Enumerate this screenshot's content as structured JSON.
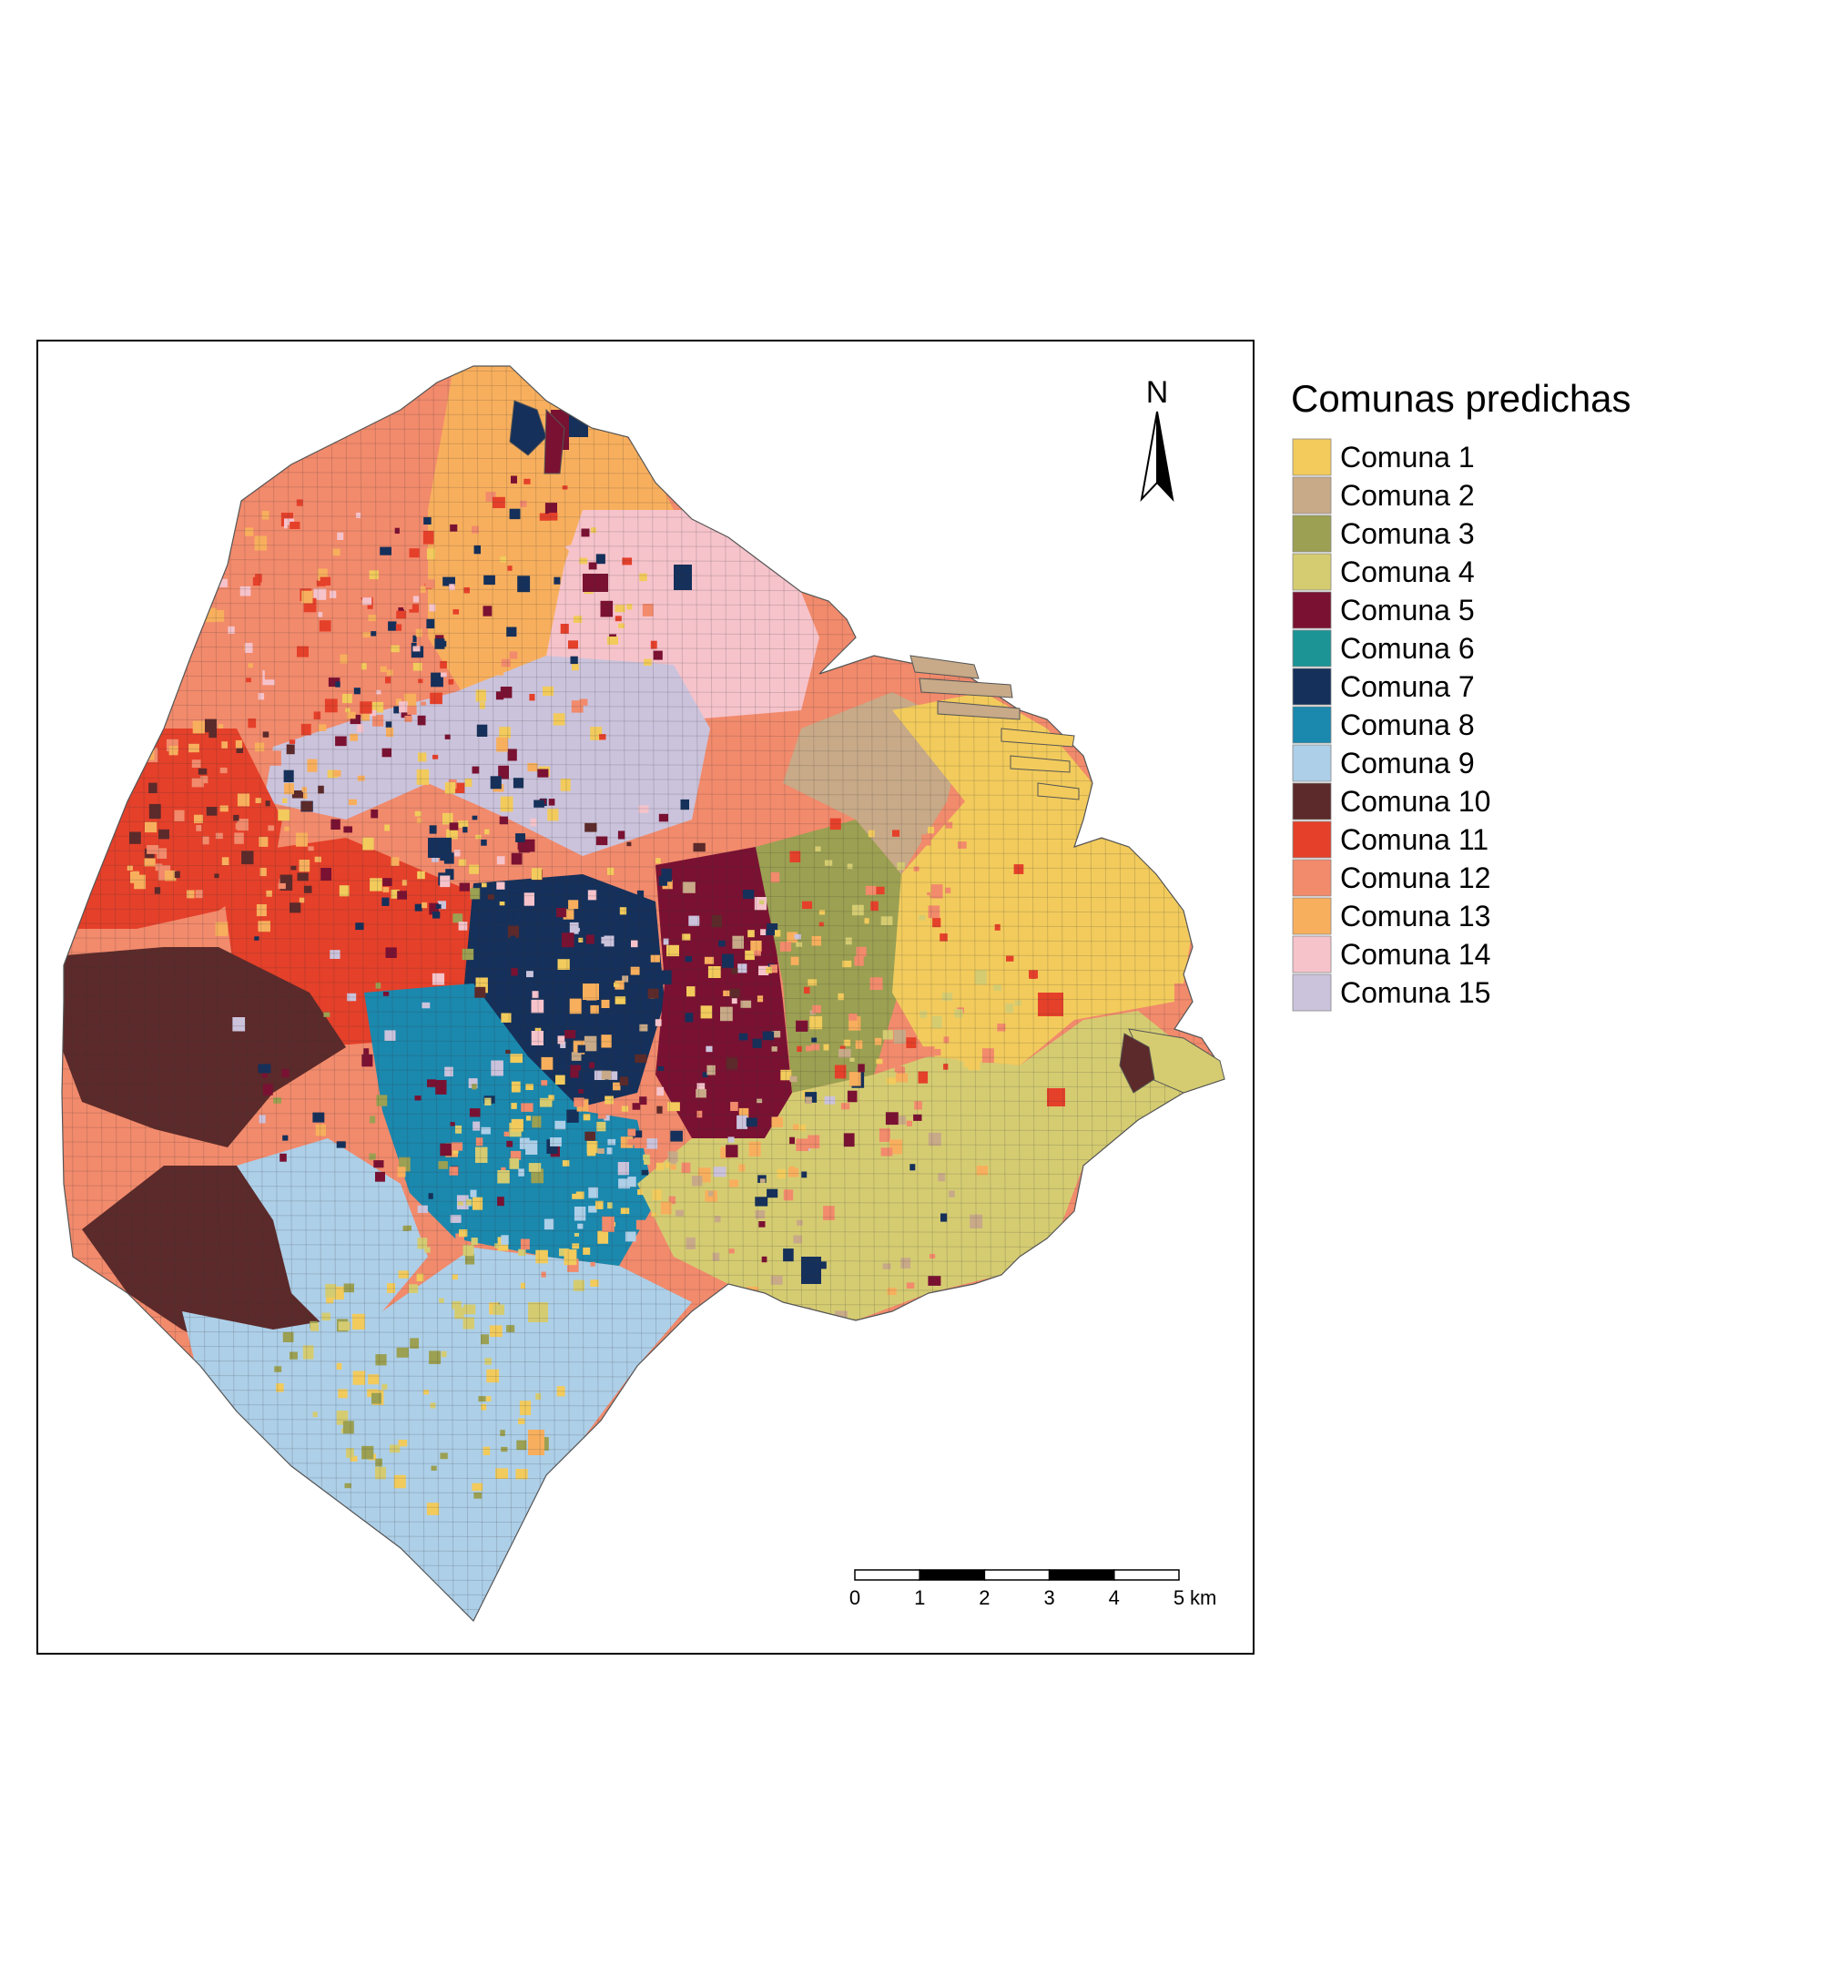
{
  "north_arrow": {
    "label": "N",
    "icon": "north-arrow-icon"
  },
  "legend": {
    "title": "Comunas predichas",
    "items": [
      {
        "label": "Comuna 1",
        "color": "#F2CB5C"
      },
      {
        "label": "Comuna 2",
        "color": "#C8AA88"
      },
      {
        "label": "Comuna 3",
        "color": "#9BA052"
      },
      {
        "label": "Comuna 4",
        "color": "#D5CC72"
      },
      {
        "label": "Comuna 5",
        "color": "#7A1132"
      },
      {
        "label": "Comuna 6",
        "color": "#1C9495"
      },
      {
        "label": "Comuna 7",
        "color": "#15305A"
      },
      {
        "label": "Comuna 8",
        "color": "#1B88AE"
      },
      {
        "label": "Comuna 9",
        "color": "#ADCFE8"
      },
      {
        "label": "Comuna 10",
        "color": "#5C2A2A"
      },
      {
        "label": "Comuna 11",
        "color": "#E5402A"
      },
      {
        "label": "Comuna 12",
        "color": "#F28A6C"
      },
      {
        "label": "Comuna 13",
        "color": "#F8AF5D"
      },
      {
        "label": "Comuna 14",
        "color": "#F6C3CB"
      },
      {
        "label": "Comuna 15",
        "color": "#CBC3DC"
      }
    ]
  },
  "scale_bar": {
    "ticks": [
      "0",
      "1",
      "2",
      "3",
      "4",
      "5"
    ],
    "unit": "km"
  }
}
